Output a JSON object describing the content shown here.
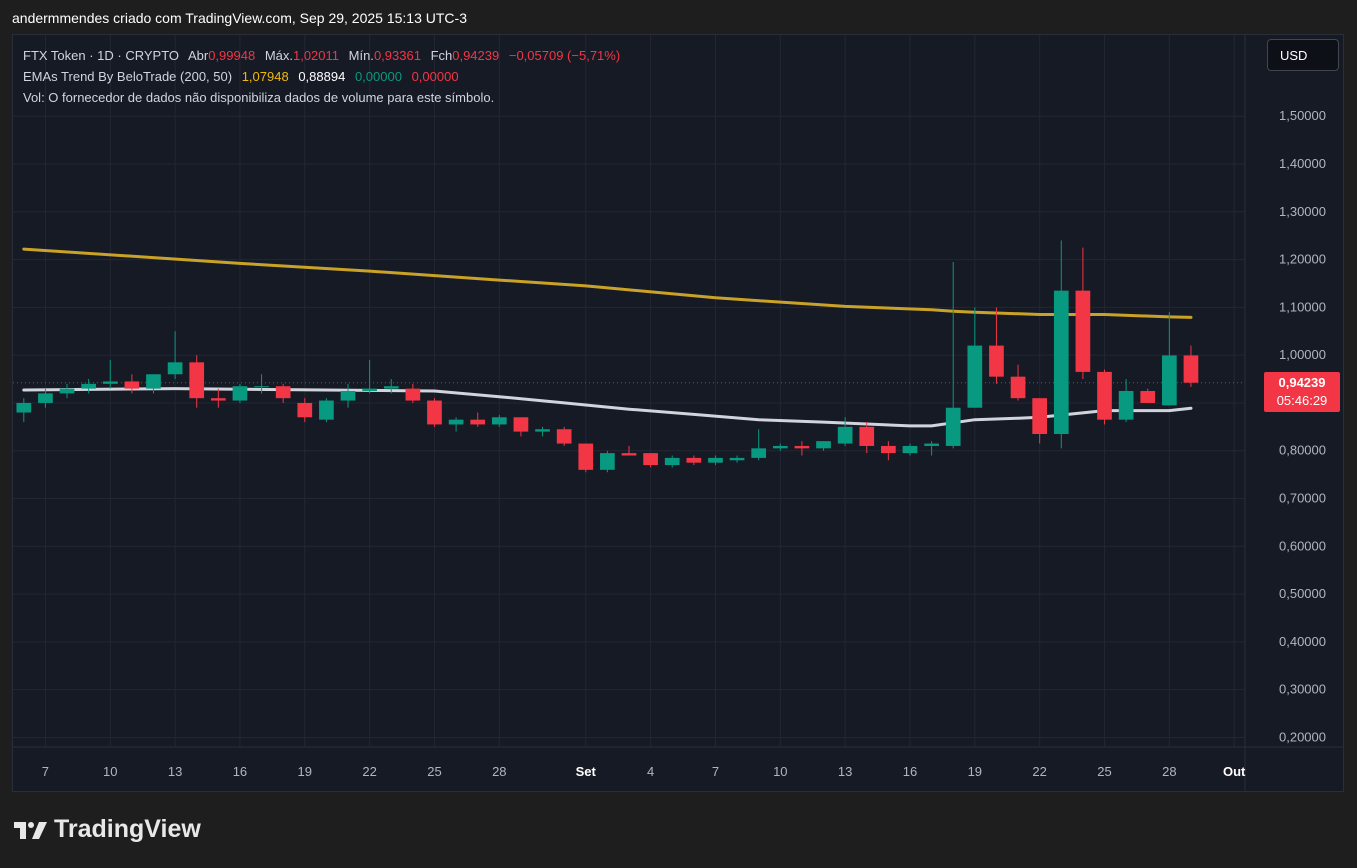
{
  "caption": "andermmendes criado com TradingView.com, Sep 29, 2025 15:13 UTC-3",
  "legend": {
    "symbol": "FTX Token · 1D · CRYPTO",
    "open_label": "Abr",
    "open": "0,99948",
    "high_label": "Máx.",
    "high": "1,02011",
    "low_label": "Mín.",
    "low": "0,93361",
    "close_label": "Fch",
    "close": "0,94239",
    "change": "−0,05709 (−5,71%)",
    "ema_name": "EMAs Trend By BeloTrade (200, 50)",
    "ema200": "1,07948",
    "ema50": "0,88894",
    "ema_v3": "0,00000",
    "ema_v4": "0,00000",
    "volume_note": "Vol: O fornecedor de dados não disponibiliza dados de volume para este símbolo."
  },
  "currency_button": "USD",
  "price_tag": {
    "price": "0,94239",
    "countdown": "05:46:29"
  },
  "brand": "TradingView",
  "colors": {
    "up": "#089981",
    "down": "#f23645",
    "ema200": "#c9a227",
    "ema50": "#d1d4dc",
    "background": "#161a25",
    "grid": "#232733"
  },
  "chart_data": {
    "type": "candlestick",
    "y_tick_labels": [
      "1,50000",
      "1,40000",
      "1,30000",
      "1,20000",
      "1,10000",
      "1,00000",
      "0,90000",
      "0,80000",
      "0,70000",
      "0,60000",
      "0,50000",
      "0,40000",
      "0,30000",
      "0,20000"
    ],
    "y_ticks": [
      1.5,
      1.4,
      1.3,
      1.2,
      1.1,
      1.0,
      0.9,
      0.8,
      0.7,
      0.6,
      0.5,
      0.4,
      0.3,
      0.2
    ],
    "ylim": [
      0.18,
      1.67
    ],
    "x_tick_labels": [
      "7",
      "10",
      "13",
      "16",
      "19",
      "22",
      "25",
      "28",
      "Set",
      "4",
      "7",
      "10",
      "13",
      "16",
      "19",
      "22",
      "25",
      "28",
      "Out"
    ],
    "x_tick_index": [
      1,
      4,
      7,
      10,
      13,
      16,
      19,
      22,
      26,
      29,
      32,
      35,
      38,
      41,
      44,
      47,
      50,
      53,
      56
    ],
    "x_range": [
      0,
      57
    ],
    "candles": [
      {
        "o": 0.88,
        "h": 0.91,
        "l": 0.86,
        "c": 0.9
      },
      {
        "o": 0.9,
        "h": 0.93,
        "l": 0.89,
        "c": 0.92
      },
      {
        "o": 0.92,
        "h": 0.94,
        "l": 0.91,
        "c": 0.93
      },
      {
        "o": 0.93,
        "h": 0.95,
        "l": 0.92,
        "c": 0.94
      },
      {
        "o": 0.94,
        "h": 0.99,
        "l": 0.93,
        "c": 0.945
      },
      {
        "o": 0.945,
        "h": 0.96,
        "l": 0.92,
        "c": 0.93
      },
      {
        "o": 0.93,
        "h": 0.96,
        "l": 0.92,
        "c": 0.96
      },
      {
        "o": 0.96,
        "h": 1.05,
        "l": 0.95,
        "c": 0.985
      },
      {
        "o": 0.985,
        "h": 1.0,
        "l": 0.89,
        "c": 0.91
      },
      {
        "o": 0.91,
        "h": 0.93,
        "l": 0.89,
        "c": 0.905
      },
      {
        "o": 0.905,
        "h": 0.94,
        "l": 0.9,
        "c": 0.935
      },
      {
        "o": 0.935,
        "h": 0.96,
        "l": 0.92,
        "c": 0.935
      },
      {
        "o": 0.935,
        "h": 0.94,
        "l": 0.9,
        "c": 0.91
      },
      {
        "o": 0.9,
        "h": 0.91,
        "l": 0.86,
        "c": 0.87
      },
      {
        "o": 0.865,
        "h": 0.91,
        "l": 0.86,
        "c": 0.905
      },
      {
        "o": 0.905,
        "h": 0.94,
        "l": 0.89,
        "c": 0.925
      },
      {
        "o": 0.925,
        "h": 0.99,
        "l": 0.92,
        "c": 0.93
      },
      {
        "o": 0.93,
        "h": 0.95,
        "l": 0.92,
        "c": 0.935
      },
      {
        "o": 0.93,
        "h": 0.94,
        "l": 0.9,
        "c": 0.905
      },
      {
        "o": 0.905,
        "h": 0.91,
        "l": 0.85,
        "c": 0.855
      },
      {
        "o": 0.855,
        "h": 0.87,
        "l": 0.84,
        "c": 0.865
      },
      {
        "o": 0.865,
        "h": 0.88,
        "l": 0.85,
        "c": 0.855
      },
      {
        "o": 0.855,
        "h": 0.875,
        "l": 0.85,
        "c": 0.87
      },
      {
        "o": 0.87,
        "h": 0.87,
        "l": 0.83,
        "c": 0.84
      },
      {
        "o": 0.84,
        "h": 0.85,
        "l": 0.83,
        "c": 0.845
      },
      {
        "o": 0.845,
        "h": 0.85,
        "l": 0.81,
        "c": 0.815
      },
      {
        "o": 0.815,
        "h": 0.815,
        "l": 0.755,
        "c": 0.76
      },
      {
        "o": 0.76,
        "h": 0.8,
        "l": 0.755,
        "c": 0.795
      },
      {
        "o": 0.795,
        "h": 0.81,
        "l": 0.79,
        "c": 0.79
      },
      {
        "o": 0.795,
        "h": 0.795,
        "l": 0.765,
        "c": 0.77
      },
      {
        "o": 0.77,
        "h": 0.79,
        "l": 0.765,
        "c": 0.785
      },
      {
        "o": 0.785,
        "h": 0.79,
        "l": 0.77,
        "c": 0.775
      },
      {
        "o": 0.775,
        "h": 0.79,
        "l": 0.77,
        "c": 0.785
      },
      {
        "o": 0.78,
        "h": 0.79,
        "l": 0.775,
        "c": 0.785
      },
      {
        "o": 0.785,
        "h": 0.845,
        "l": 0.78,
        "c": 0.805
      },
      {
        "o": 0.805,
        "h": 0.815,
        "l": 0.8,
        "c": 0.81
      },
      {
        "o": 0.81,
        "h": 0.82,
        "l": 0.79,
        "c": 0.805
      },
      {
        "o": 0.805,
        "h": 0.82,
        "l": 0.8,
        "c": 0.82
      },
      {
        "o": 0.815,
        "h": 0.87,
        "l": 0.81,
        "c": 0.85
      },
      {
        "o": 0.85,
        "h": 0.86,
        "l": 0.795,
        "c": 0.81
      },
      {
        "o": 0.81,
        "h": 0.82,
        "l": 0.78,
        "c": 0.795
      },
      {
        "o": 0.795,
        "h": 0.815,
        "l": 0.79,
        "c": 0.81
      },
      {
        "o": 0.81,
        "h": 0.82,
        "l": 0.79,
        "c": 0.815
      },
      {
        "o": 0.81,
        "h": 1.195,
        "l": 0.805,
        "c": 0.89
      },
      {
        "o": 0.89,
        "h": 1.1,
        "l": 0.89,
        "c": 1.02
      },
      {
        "o": 1.02,
        "h": 1.1,
        "l": 0.94,
        "c": 0.955
      },
      {
        "o": 0.955,
        "h": 0.98,
        "l": 0.905,
        "c": 0.91
      },
      {
        "o": 0.91,
        "h": 0.91,
        "l": 0.815,
        "c": 0.835
      },
      {
        "o": 0.835,
        "h": 1.24,
        "l": 0.805,
        "c": 1.135
      },
      {
        "o": 1.135,
        "h": 1.225,
        "l": 0.95,
        "c": 0.965
      },
      {
        "o": 0.965,
        "h": 0.97,
        "l": 0.855,
        "c": 0.865
      },
      {
        "o": 0.865,
        "h": 0.95,
        "l": 0.86,
        "c": 0.925
      },
      {
        "o": 0.925,
        "h": 0.93,
        "l": 0.9,
        "c": 0.9
      },
      {
        "o": 0.895,
        "h": 1.09,
        "l": 0.895,
        "c": 0.99948
      },
      {
        "o": 0.99948,
        "h": 1.02011,
        "l": 0.93361,
        "c": 0.94239
      }
    ],
    "ema200": [
      [
        0,
        1.222
      ],
      [
        10,
        1.192
      ],
      [
        16,
        1.176
      ],
      [
        22,
        1.157
      ],
      [
        26,
        1.145
      ],
      [
        32,
        1.12
      ],
      [
        38,
        1.102
      ],
      [
        42,
        1.095
      ],
      [
        43,
        1.092
      ],
      [
        44,
        1.09
      ],
      [
        47,
        1.085
      ],
      [
        50,
        1.085
      ],
      [
        53,
        1.08
      ],
      [
        54,
        1.079
      ]
    ],
    "ema50": [
      [
        0,
        0.927
      ],
      [
        7,
        0.93
      ],
      [
        19,
        0.925
      ],
      [
        22,
        0.913
      ],
      [
        25,
        0.9
      ],
      [
        28,
        0.887
      ],
      [
        31,
        0.876
      ],
      [
        34,
        0.865
      ],
      [
        37,
        0.86
      ],
      [
        41,
        0.852
      ],
      [
        42,
        0.852
      ],
      [
        44,
        0.865
      ],
      [
        46,
        0.868
      ],
      [
        47,
        0.87
      ],
      [
        50,
        0.884
      ],
      [
        53,
        0.884
      ],
      [
        54,
        0.889
      ]
    ],
    "last_price": 0.94239
  }
}
